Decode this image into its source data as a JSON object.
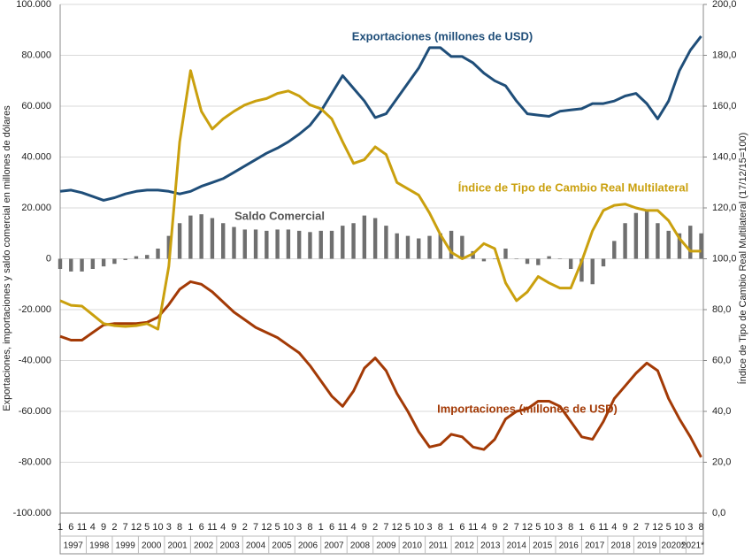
{
  "chart_data": {
    "type": "line",
    "categories": [
      1,
      6,
      11,
      4,
      9,
      2,
      7,
      12,
      5,
      10,
      3,
      8,
      1,
      6,
      11,
      4,
      9,
      2,
      7,
      12,
      5,
      10,
      3,
      8,
      1,
      6,
      11,
      4,
      9,
      2,
      7,
      12,
      5,
      10,
      3,
      8,
      1,
      6,
      11,
      4,
      9,
      2,
      7,
      12,
      5,
      10,
      3,
      8,
      1,
      6,
      11,
      4,
      9,
      2,
      7,
      12,
      5,
      10,
      3,
      8
    ],
    "year_labels": [
      "1997",
      "1998",
      "1999",
      "2000",
      "2001",
      "2002",
      "2003",
      "2004",
      "2005",
      "2006",
      "2007",
      "2008",
      "2009",
      "2010",
      "2011",
      "2012",
      "2013",
      "2014",
      "2015",
      "2016",
      "2017",
      "2018",
      "2019",
      "2020*",
      "2021*"
    ],
    "ylabel": "Exportaciones, importaciones y saldo comercial en millones de dólares",
    "y2label": "Índice de Tipo de Cambio Real Multilateral (17/12/15=100)",
    "ylim": [
      -100000,
      100000
    ],
    "yticks": [
      {
        "value": -100000,
        "label": "-100.000"
      },
      {
        "value": -80000,
        "label": "-80.000"
      },
      {
        "value": -60000,
        "label": "-60.000"
      },
      {
        "value": -40000,
        "label": "-40.000"
      },
      {
        "value": -20000,
        "label": "-20.000"
      },
      0,
      {
        "value": 20000,
        "label": "20.000"
      },
      {
        "value": 40000,
        "label": "40.000"
      },
      {
        "value": 60000,
        "label": "60.000"
      },
      {
        "value": 80000,
        "label": "80.000"
      },
      {
        "value": 100000,
        "label": "100.000"
      }
    ],
    "y2lim": [
      0,
      200
    ],
    "y2ticks": [
      {
        "value": 0,
        "label": "0,0"
      },
      {
        "value": 20,
        "label": "20,0"
      },
      {
        "value": 40,
        "label": "40,0"
      },
      {
        "value": 60,
        "label": "60,0"
      },
      {
        "value": 80,
        "label": "80,0"
      },
      {
        "value": 100,
        "label": "100,0"
      },
      {
        "value": 120,
        "label": "120,0"
      },
      {
        "value": 140,
        "label": "140,0"
      },
      {
        "value": 160,
        "label": "160,0"
      },
      {
        "value": 180,
        "label": "180,0"
      },
      {
        "value": 200,
        "label": "200,0"
      }
    ],
    "grid": true,
    "series": [
      {
        "name": "Saldo Comercial",
        "type": "bar",
        "color": "#6f6f6f",
        "values": [
          -4000,
          -5000,
          -5000,
          -4000,
          -3000,
          -2000,
          -500,
          1000,
          1500,
          4000,
          9000,
          14000,
          17000,
          17500,
          16000,
          14000,
          12500,
          11500,
          11500,
          11000,
          11500,
          11500,
          11000,
          10500,
          11000,
          11000,
          13000,
          14000,
          17000,
          16000,
          13000,
          10000,
          9000,
          8000,
          9000,
          10000,
          11000,
          9000,
          3000,
          -1000,
          0,
          4000,
          0,
          -2000,
          -2500,
          1000,
          0,
          -4000,
          -9000,
          -10000,
          -3000,
          7000,
          14000,
          18000,
          19000,
          14000,
          11000,
          10000,
          13000,
          10000
        ]
      },
      {
        "name": "Exportaciones (millones de USD)",
        "type": "line",
        "color": "#1f4e79",
        "values": [
          26500,
          27000,
          26000,
          24500,
          23000,
          24000,
          25500,
          26500,
          27000,
          27000,
          26500,
          25500,
          26500,
          28500,
          30000,
          31500,
          34000,
          36500,
          39000,
          41500,
          43500,
          46000,
          49000,
          52500,
          58000,
          65000,
          72000,
          67000,
          62000,
          55500,
          57000,
          63000,
          69000,
          75000,
          83000,
          83000,
          79500,
          79500,
          77000,
          73000,
          70000,
          68000,
          62000,
          57000,
          56500,
          56000,
          58000,
          58500,
          59000,
          61000,
          61000,
          62000,
          64000,
          65000,
          61000,
          55000,
          62000,
          74000,
          82000,
          87500
        ]
      },
      {
        "name": "Importaciones (millones de USD)",
        "type": "line",
        "color": "#a33a06",
        "values": [
          -30500,
          -32000,
          -32000,
          -29000,
          -26000,
          -25500,
          -25500,
          -25500,
          -25000,
          -23000,
          -18000,
          -12000,
          -9000,
          -10000,
          -13000,
          -17000,
          -21000,
          -24000,
          -27000,
          -29000,
          -31000,
          -34000,
          -37000,
          -42000,
          -48000,
          -54000,
          -58000,
          -52000,
          -43000,
          -39000,
          -44000,
          -53000,
          -60000,
          -68000,
          -74000,
          -73000,
          -69000,
          -70000,
          -74000,
          -75000,
          -71000,
          -63000,
          -60000,
          -59000,
          -56000,
          -56000,
          -58000,
          -64000,
          -70000,
          -71000,
          -64000,
          -55000,
          -50000,
          -45000,
          -41000,
          -44000,
          -55000,
          -63000,
          -70000,
          -78000
        ]
      },
      {
        "name": "Índice de Tipo de Cambio Real Multilateral",
        "type": "line",
        "axis": "y2",
        "color": "#caa00e",
        "values": [
          83.5,
          81.7,
          81.4,
          78,
          74.5,
          73.7,
          73.4,
          73.7,
          74.5,
          72.3,
          97,
          146,
          174,
          158,
          151,
          155,
          158,
          160.5,
          162,
          163,
          165,
          166,
          164,
          160.5,
          159,
          155,
          146,
          137.5,
          139,
          144,
          141,
          130,
          127.5,
          125,
          118,
          109.5,
          102.5,
          100,
          102,
          106,
          104,
          90.5,
          83.5,
          87,
          93,
          90.5,
          88.5,
          88.5,
          99,
          111,
          119,
          121,
          121.5,
          120,
          119,
          119,
          115,
          108,
          103,
          103
        ]
      }
    ]
  }
}
